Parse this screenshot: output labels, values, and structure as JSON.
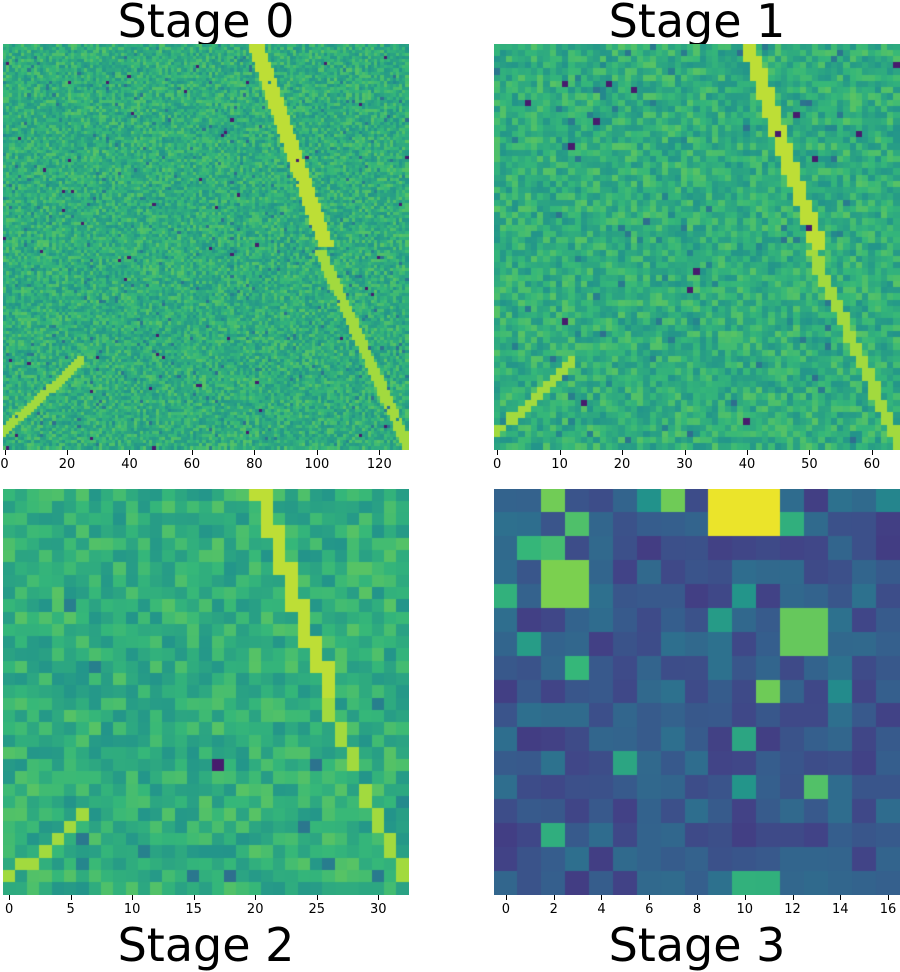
{
  "figure": {
    "panels": [
      {
        "id": "stage0",
        "title": "Stage 0",
        "grid_size": 130,
        "xticks": [
          "0",
          "20",
          "40",
          "60",
          "80",
          "100",
          "120"
        ],
        "colormap": "viridis",
        "value_range": "high"
      },
      {
        "id": "stage1",
        "title": "Stage 1",
        "grid_size": 65,
        "xticks": [
          "0",
          "10",
          "20",
          "30",
          "40",
          "50",
          "60"
        ],
        "colormap": "viridis",
        "value_range": "high"
      },
      {
        "id": "stage2",
        "title": "Stage 2",
        "grid_size": 33,
        "xticks": [
          "0",
          "5",
          "10",
          "15",
          "20",
          "25",
          "30"
        ],
        "colormap": "viridis",
        "value_range": "high"
      },
      {
        "id": "stage3",
        "title": "Stage 3",
        "grid_size": 17,
        "xticks": [
          "0",
          "2",
          "4",
          "6",
          "8",
          "10",
          "12",
          "14",
          "16"
        ],
        "colormap": "viridis",
        "value_range": "full"
      }
    ]
  },
  "chart_data": [
    {
      "type": "heatmap",
      "title": "Stage 0",
      "xlabel": "",
      "ylabel": "",
      "x_range": [
        0,
        129
      ],
      "xticks": [
        0,
        20,
        40,
        60,
        80,
        100,
        120
      ],
      "yticks": [],
      "grid": false,
      "colormap": "viridis"
    },
    {
      "type": "heatmap",
      "title": "Stage 1",
      "xlabel": "",
      "ylabel": "",
      "x_range": [
        0,
        64
      ],
      "xticks": [
        0,
        10,
        20,
        30,
        40,
        50,
        60
      ],
      "yticks": [],
      "grid": false,
      "colormap": "viridis"
    },
    {
      "type": "heatmap",
      "title": "Stage 2",
      "xlabel": "",
      "ylabel": "",
      "x_range": [
        0,
        32
      ],
      "xticks": [
        0,
        5,
        10,
        15,
        20,
        25,
        30
      ],
      "yticks": [],
      "grid": false,
      "colormap": "viridis"
    },
    {
      "type": "heatmap",
      "title": "Stage 3",
      "xlabel": "",
      "ylabel": "",
      "x_range": [
        0,
        16
      ],
      "xticks": [
        0,
        2,
        4,
        6,
        8,
        10,
        12,
        14,
        16
      ],
      "yticks": [],
      "grid": false,
      "colormap": "viridis"
    }
  ]
}
